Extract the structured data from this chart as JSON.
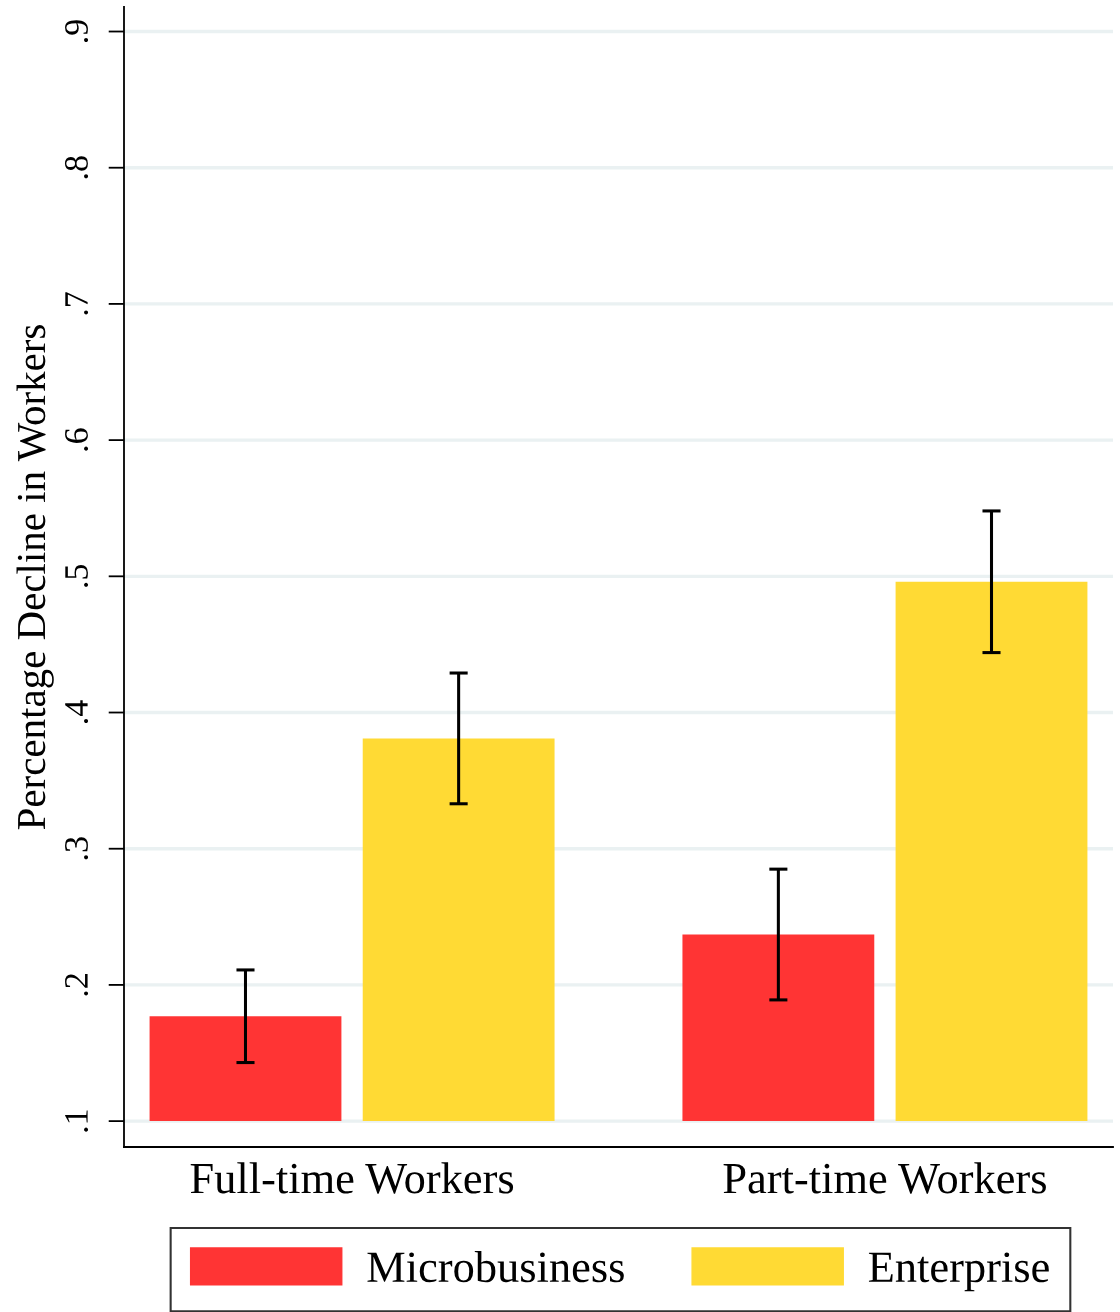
{
  "chart_data": {
    "type": "bar",
    "ylabel": "Percentage Decline in Workers",
    "categories": [
      "Full-time Workers",
      "Part-time Workers"
    ],
    "series": [
      {
        "name": "Microbusiness",
        "color": "#ff3434",
        "values": [
          0.077,
          0.137
        ],
        "base": [
          0.1,
          0.1
        ],
        "errors": [
          0.034,
          0.048
        ]
      },
      {
        "name": "Enterprise",
        "color": "#ffda34",
        "values": [
          0.281,
          0.396
        ],
        "base": [
          0.1,
          0.1
        ],
        "errors": [
          0.048,
          0.052
        ]
      }
    ],
    "ylim": [
      0.081,
      0.918
    ],
    "yticks": [
      {
        "value": 0.1,
        "label": ".1"
      },
      {
        "value": 0.2,
        "label": ".2"
      },
      {
        "value": 0.3,
        "label": ".3"
      },
      {
        "value": 0.4,
        "label": ".4"
      },
      {
        "value": 0.5,
        "label": ".5"
      },
      {
        "value": 0.6,
        "label": ".6"
      },
      {
        "value": 0.7,
        "label": ".7"
      },
      {
        "value": 0.8,
        "label": ".8"
      },
      {
        "value": 0.9,
        "label": ".9"
      }
    ],
    "grid": "y",
    "legend": "bottom"
  }
}
